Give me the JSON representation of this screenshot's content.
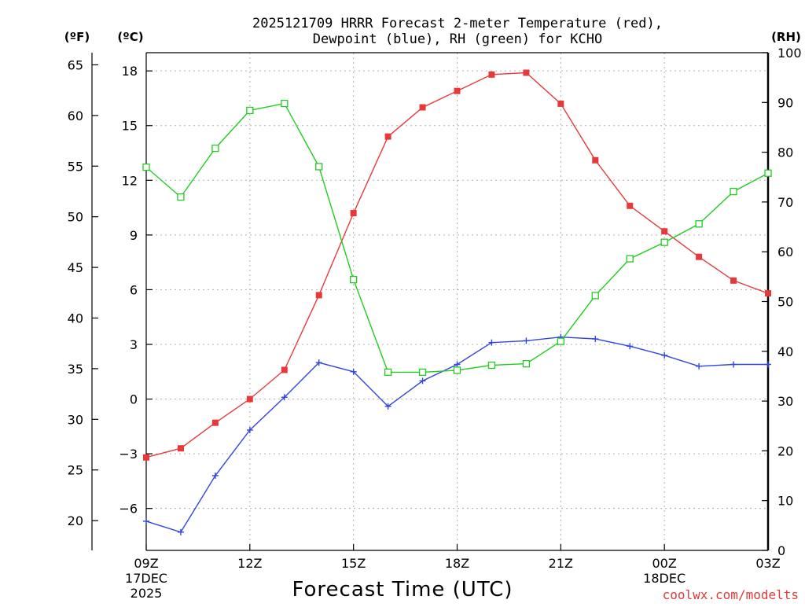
{
  "chart_data": {
    "type": "line",
    "title_line1": "2025121709 HRRR Forecast 2-meter Temperature (red),",
    "title_line2": "Dewpoint (blue), RH (green) for KCHO",
    "axis_units": {
      "fahrenheit": "(ºF)",
      "celsius": "(ºC)",
      "rh": "(RH)"
    },
    "celsius_ticks": [
      -6,
      -3,
      0,
      3,
      6,
      9,
      12,
      15,
      18
    ],
    "fahrenheit_ticks": [
      20,
      25,
      30,
      35,
      40,
      45,
      50,
      55,
      60,
      65
    ],
    "rh_ticks": [
      0,
      10,
      20,
      30,
      40,
      50,
      60,
      70,
      80,
      90,
      100
    ],
    "ylim_celsius": [
      -8.3,
      19
    ],
    "ylim_rh": [
      0,
      100
    ],
    "xlim_hours": [
      9,
      27
    ],
    "x_ticks": [
      {
        "hour": 9,
        "label": "09Z",
        "sub1": "17DEC",
        "sub2": "2025"
      },
      {
        "hour": 12,
        "label": "12Z",
        "sub1": "",
        "sub2": ""
      },
      {
        "hour": 15,
        "label": "15Z",
        "sub1": "",
        "sub2": ""
      },
      {
        "hour": 18,
        "label": "18Z",
        "sub1": "",
        "sub2": ""
      },
      {
        "hour": 21,
        "label": "21Z",
        "sub1": "",
        "sub2": ""
      },
      {
        "hour": 24,
        "label": "00Z",
        "sub1": "18DEC",
        "sub2": ""
      },
      {
        "hour": 27,
        "label": "03Z",
        "sub1": "",
        "sub2": ""
      }
    ],
    "xlabel": "Forecast Time (UTC)",
    "credit": "coolwx.com/modelts",
    "x_hours": [
      9,
      10,
      11,
      12,
      13,
      14,
      15,
      16,
      17,
      18,
      19,
      20,
      21,
      22,
      23,
      24,
      25,
      26,
      27
    ],
    "series": [
      {
        "name": "Temperature",
        "color": "#e8383a",
        "marker": "filled-square",
        "axis": "celsius",
        "values": [
          -3.2,
          -2.7,
          -1.3,
          0.0,
          1.6,
          5.7,
          10.2,
          14.4,
          16.0,
          16.9,
          17.8,
          17.9,
          16.2,
          13.1,
          10.6,
          9.2,
          7.8,
          6.5,
          5.8
        ]
      },
      {
        "name": "Dewpoint",
        "color": "#3346e0",
        "marker": "plus",
        "axis": "celsius",
        "values": [
          -6.7,
          -7.3,
          -4.2,
          -1.7,
          0.1,
          2.0,
          1.5,
          -0.4,
          1.0,
          1.9,
          3.1,
          3.2,
          3.4,
          3.3,
          2.9,
          2.4,
          1.8,
          1.9,
          1.9
        ]
      },
      {
        "name": "RH",
        "color": "#22cc22",
        "marker": "open-square",
        "axis": "rh",
        "values": [
          77.0,
          71.0,
          80.8,
          88.4,
          89.8,
          77.1,
          54.4,
          35.8,
          35.8,
          36.2,
          37.2,
          37.5,
          42.0,
          51.2,
          58.6,
          61.9,
          65.6,
          72.1,
          75.8
        ]
      }
    ]
  }
}
